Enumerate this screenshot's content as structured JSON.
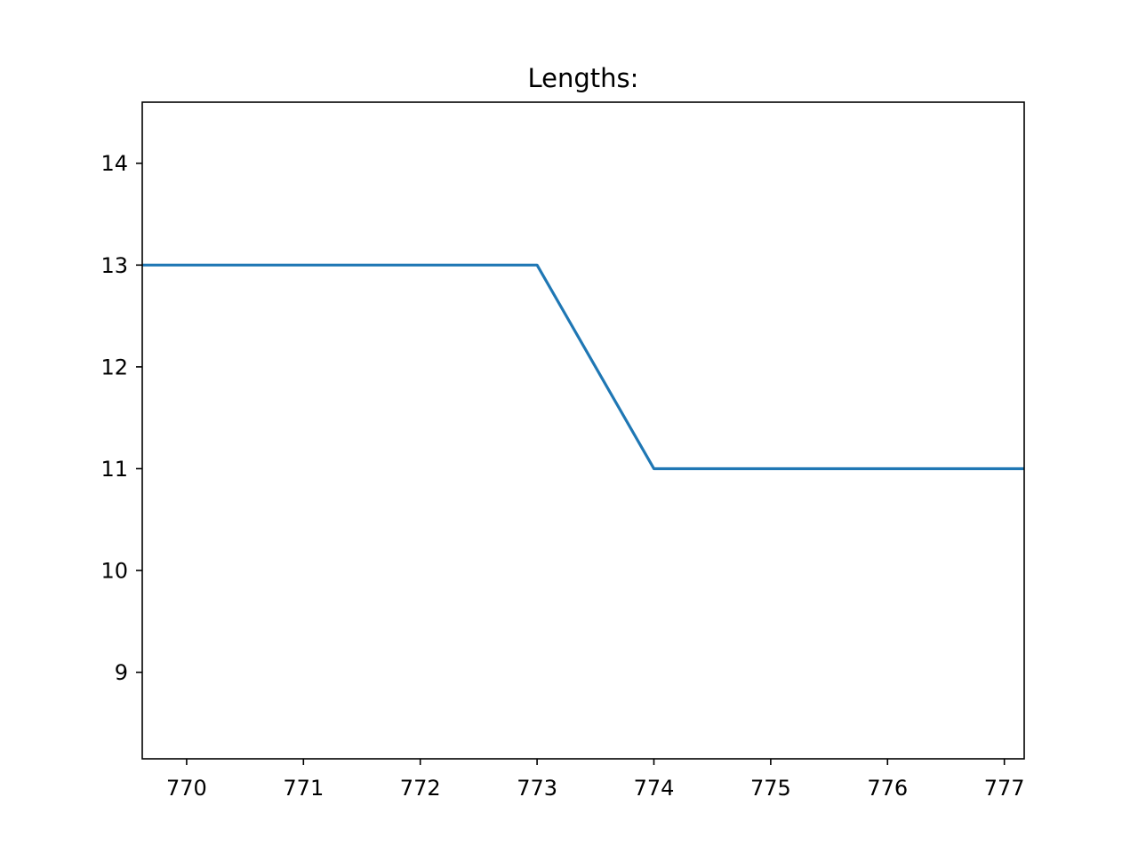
{
  "chart_data": {
    "type": "line",
    "title": "Lengths:",
    "xlabel": "",
    "ylabel": "",
    "xlim": [
      769.62,
      777.17
    ],
    "ylim": [
      8.15,
      14.6
    ],
    "x_ticks": [
      770,
      771,
      772,
      773,
      774,
      775,
      776,
      777
    ],
    "y_ticks": [
      9,
      10,
      11,
      12,
      13,
      14
    ],
    "grid": false,
    "series": [
      {
        "color": "#1f77b4",
        "x": [
          769,
          770,
          771,
          772,
          773,
          774,
          775,
          776,
          777,
          778
        ],
        "y": [
          13,
          13,
          13,
          13,
          13,
          11,
          11,
          11,
          11,
          11
        ]
      }
    ]
  }
}
